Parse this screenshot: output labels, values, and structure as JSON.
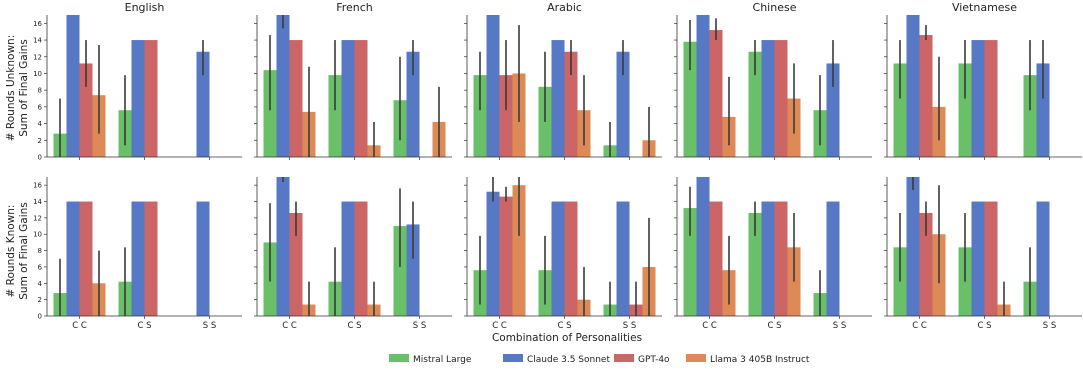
{
  "figure": {
    "xlabel": "Combination of Personalities",
    "ylabels": [
      "# Rounds Unknown:\nSum of Final Gains",
      "# Rounds Known:\nSum of Final Gains"
    ],
    "languages": [
      "English",
      "French",
      "Arabic",
      "Chinese",
      "Vietnamese"
    ]
  },
  "legend": {
    "placement": "bottom-center",
    "items": [
      {
        "label": "Mistral Large",
        "color": "#6abf69"
      },
      {
        "label": "Claude 3.5 Sonnet",
        "color": "#5778c4"
      },
      {
        "label": "GPT-4o",
        "color": "#cc6666"
      },
      {
        "label": "Llama 3 405B Instruct",
        "color": "#dd8a56"
      }
    ]
  },
  "chart_data": {
    "type": "bar",
    "categories": [
      "C C",
      "C S",
      "S S"
    ],
    "ylim": [
      0,
      17
    ],
    "yticks": [
      0,
      2,
      4,
      6,
      8,
      10,
      12,
      14,
      16
    ],
    "series_names": [
      "Mistral Large",
      "Claude 3.5 Sonnet",
      "GPT-4o",
      "Llama 3 405B Instruct"
    ],
    "rows": [
      {
        "panels": [
          {
            "title": "English",
            "values": [
              [
                2.8,
                5.6,
                null
              ],
              [
                17,
                14,
                12.6
              ],
              [
                11.2,
                14,
                null
              ],
              [
                7.4,
                null,
                null
              ]
            ],
            "errors": [
              [
                [
                  0,
                  7
                ],
                [
                  1.4,
                  9.8
                ],
                null
              ],
              [
                null,
                [
                  14,
                  14
                ],
                [
                  9.8,
                  14
                ]
              ],
              [
                [
                  8.4,
                  14
                ],
                [
                  14,
                  14
                ],
                null
              ],
              [
                [
                  2.8,
                  13.4
                ],
                null,
                null
              ]
            ]
          },
          {
            "title": "French",
            "values": [
              [
                10.4,
                9.8,
                6.8
              ],
              [
                17,
                14,
                12.6
              ],
              [
                14,
                14,
                null
              ],
              [
                5.4,
                1.4,
                4.2
              ]
            ],
            "errors": [
              [
                [
                  5.6,
                  14.6
                ],
                [
                  5.6,
                  14
                ],
                [
                  2,
                  12
                ]
              ],
              [
                [
                  15.4,
                  17
                ],
                [
                  14,
                  14
                ],
                [
                  9.8,
                  14
                ]
              ],
              [
                [
                  14,
                  14
                ],
                [
                  14,
                  14
                ],
                null
              ],
              [
                [
                  0,
                  10.8
                ],
                [
                  0,
                  4.2
                ],
                [
                  0,
                  8.4
                ]
              ]
            ]
          },
          {
            "title": "Arabic",
            "values": [
              [
                9.8,
                8.4,
                1.4
              ],
              [
                17,
                14,
                12.6
              ],
              [
                9.8,
                12.6,
                null
              ],
              [
                10,
                5.6,
                2
              ]
            ],
            "errors": [
              [
                [
                  5.6,
                  12.6
                ],
                [
                  4.2,
                  12.6
                ],
                [
                  0,
                  4.2
                ]
              ],
              [
                [
                  17,
                  17
                ],
                [
                  14,
                  14
                ],
                [
                  9.8,
                  14
                ]
              ],
              [
                [
                  5.6,
                  14
                ],
                [
                  9.8,
                  14
                ],
                null
              ],
              [
                [
                  4.2,
                  15.8
                ],
                [
                  1.4,
                  9.8
                ],
                [
                  0,
                  6
                ]
              ]
            ]
          },
          {
            "title": "Chinese",
            "values": [
              [
                13.8,
                12.6,
                5.6
              ],
              [
                17,
                14,
                11.2
              ],
              [
                15.2,
                14,
                null
              ],
              [
                4.8,
                7,
                null
              ]
            ],
            "errors": [
              [
                [
                  10.4,
                  16.4
                ],
                [
                  9.8,
                  14
                ],
                [
                  1.4,
                  9.8
                ]
              ],
              [
                [
                  17,
                  17
                ],
                [
                  14,
                  14
                ],
                [
                  8.4,
                  14
                ]
              ],
              [
                [
                  14,
                  16.6
                ],
                [
                  14,
                  14
                ],
                null
              ],
              [
                [
                  1.4,
                  9.6
                ],
                [
                  2.8,
                  11.2
                ],
                null
              ]
            ]
          },
          {
            "title": "Vietnamese",
            "values": [
              [
                11.2,
                11.2,
                9.8
              ],
              [
                17,
                14,
                11.2
              ],
              [
                14.6,
                14,
                null
              ],
              [
                6,
                null,
                null
              ]
            ],
            "errors": [
              [
                [
                  7,
                  14
                ],
                [
                  7,
                  14
                ],
                [
                  5.6,
                  14
                ]
              ],
              [
                [
                  17,
                  17
                ],
                [
                  14,
                  14
                ],
                [
                  7,
                  14
                ]
              ],
              [
                [
                  14,
                  15.8
                ],
                [
                  14,
                  14
                ],
                null
              ],
              [
                [
                  2,
                  12
                ],
                null,
                null
              ]
            ]
          }
        ]
      },
      {
        "panels": [
          {
            "title": "English",
            "values": [
              [
                2.8,
                4.2,
                null
              ],
              [
                14,
                14,
                14
              ],
              [
                14,
                14,
                null
              ],
              [
                4,
                null,
                null
              ]
            ],
            "errors": [
              [
                [
                  0,
                  7
                ],
                [
                  0,
                  8.4
                ],
                null
              ],
              [
                [
                  14,
                  14
                ],
                [
                  14,
                  14
                ],
                [
                  14,
                  14
                ]
              ],
              [
                [
                  14,
                  14
                ],
                [
                  14,
                  14
                ],
                null
              ],
              [
                [
                  0,
                  8
                ],
                null,
                null
              ]
            ]
          },
          {
            "title": "French",
            "values": [
              [
                9,
                4.2,
                11
              ],
              [
                17,
                14,
                11.2
              ],
              [
                12.6,
                14,
                null
              ],
              [
                1.4,
                1.4,
                null
              ]
            ],
            "errors": [
              [
                [
                  4.2,
                  13.8
                ],
                [
                  0,
                  8.4
                ],
                [
                  6,
                  15.6
                ]
              ],
              [
                [
                  16.4,
                  17
                ],
                [
                  14,
                  14
                ],
                [
                  7,
                  14
                ]
              ],
              [
                [
                  9.8,
                  14
                ],
                [
                  14,
                  14
                ],
                null
              ],
              [
                [
                  0,
                  4.2
                ],
                [
                  0,
                  4.2
                ],
                null
              ]
            ]
          },
          {
            "title": "Arabic",
            "values": [
              [
                5.6,
                5.6,
                1.4
              ],
              [
                15.2,
                14,
                14
              ],
              [
                14.6,
                14,
                1.4
              ],
              [
                16,
                2,
                6
              ]
            ],
            "errors": [
              [
                [
                  1.4,
                  9.8
                ],
                [
                  1.4,
                  9.8
                ],
                [
                  0,
                  4.2
                ]
              ],
              [
                [
                  14,
                  17
                ],
                [
                  14,
                  14
                ],
                [
                  14,
                  14
                ]
              ],
              [
                [
                  14,
                  15.8
                ],
                [
                  14,
                  14
                ],
                [
                  0,
                  4.2
                ]
              ],
              [
                [
                  9.8,
                  17
                ],
                [
                  0,
                  6
                ],
                [
                  0,
                  12
                ]
              ]
            ]
          },
          {
            "title": "Chinese",
            "values": [
              [
                13.2,
                12.6,
                2.8
              ],
              [
                17,
                14,
                14
              ],
              [
                14,
                14,
                null
              ],
              [
                5.6,
                8.4,
                null
              ]
            ],
            "errors": [
              [
                [
                  9.8,
                  15.8
                ],
                [
                  9.8,
                  14
                ],
                [
                  0,
                  5.6
                ]
              ],
              [
                [
                  17,
                  17
                ],
                [
                  14,
                  14
                ],
                [
                  14,
                  14
                ]
              ],
              [
                [
                  14,
                  14
                ],
                [
                  14,
                  14
                ],
                null
              ],
              [
                [
                  1.4,
                  9.8
                ],
                [
                  4.2,
                  12.6
                ],
                null
              ]
            ]
          },
          {
            "title": "Vietnamese",
            "values": [
              [
                8.4,
                8.4,
                4.2
              ],
              [
                17,
                14,
                14
              ],
              [
                12.6,
                14,
                null
              ],
              [
                10,
                1.4,
                null
              ]
            ],
            "errors": [
              [
                [
                  4.2,
                  12.6
                ],
                [
                  4.2,
                  12.6
                ],
                [
                  0,
                  8.4
                ]
              ],
              [
                [
                  15.4,
                  17
                ],
                [
                  14,
                  14
                ],
                [
                  14,
                  14
                ]
              ],
              [
                [
                  9.8,
                  14
                ],
                [
                  14,
                  14
                ],
                null
              ],
              [
                [
                  4,
                  16
                ],
                [
                  0,
                  4.2
                ],
                null
              ]
            ]
          }
        ]
      }
    ]
  }
}
